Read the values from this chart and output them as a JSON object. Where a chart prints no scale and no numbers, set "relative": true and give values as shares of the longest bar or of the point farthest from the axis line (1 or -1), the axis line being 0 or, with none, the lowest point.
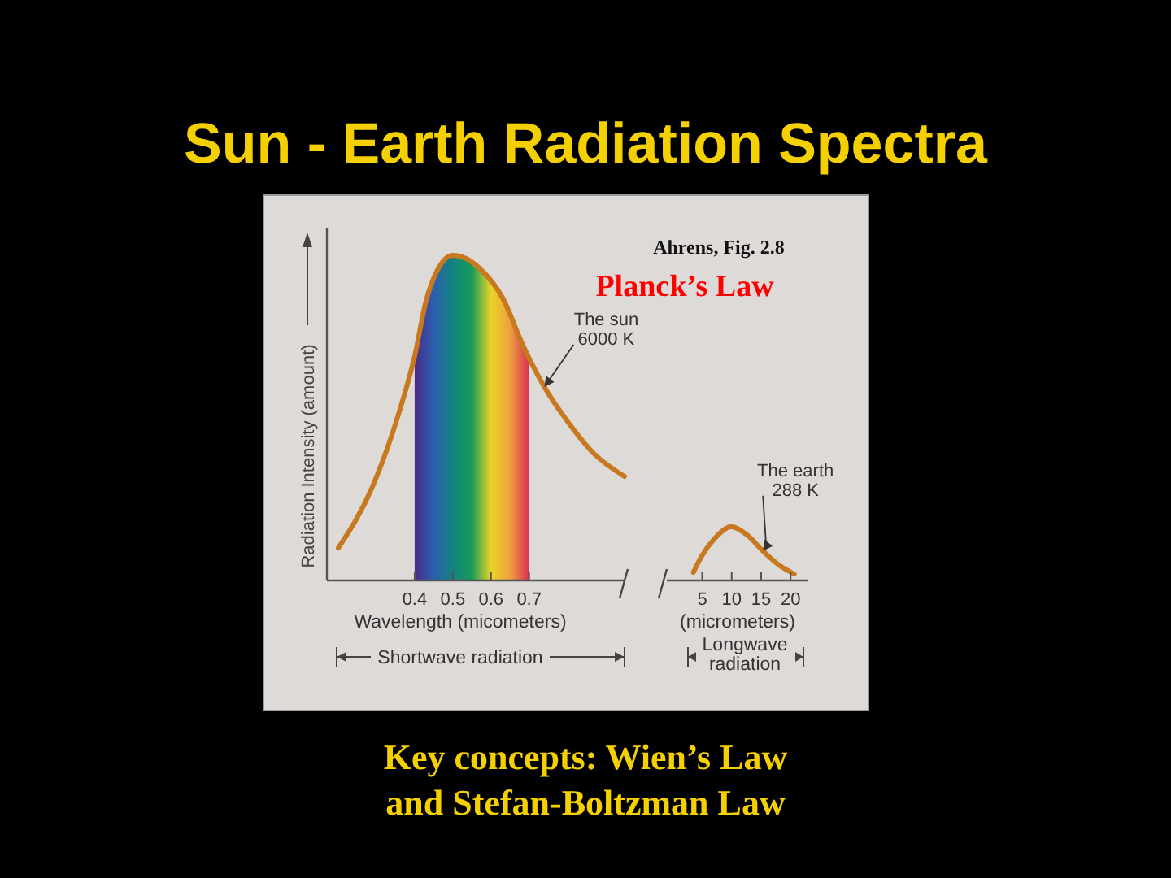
{
  "chart_data": [
    {
      "type": "line",
      "title": "Sun - Earth Radiation Spectra",
      "xlabel": "Wavelength (micometers)",
      "ylabel": "Radiation Intensity (amount)",
      "relative": true,
      "x": [
        0.2,
        0.29,
        0.36,
        0.4,
        0.43,
        0.46,
        0.5,
        0.535,
        0.57,
        0.63,
        0.685,
        0.74,
        0.8,
        0.87,
        0.95
      ],
      "series": [
        {
          "color": "#c8781e",
          "values": [
            0.1,
            0.29,
            0.52,
            0.69,
            0.86,
            0.955,
            1.0,
            0.99,
            0.96,
            0.87,
            0.72,
            0.595,
            0.49,
            0.39,
            0.32
          ]
        }
      ],
      "xlim": [
        0.17,
        0.95
      ],
      "xticks": [
        0.4,
        0.5,
        0.6,
        0.7
      ],
      "marker": "none",
      "bands": [
        {
          "axis": "x",
          "from": 0.4,
          "to": 0.7
        }
      ],
      "annotations": [
        "Ahrens, Fig. 2.8",
        "Planck’s Law",
        "Shortwave radiation",
        "Key concepts: Wien’s Law\nand Stefan-Boltzman Law",
        {
          "text": "The sun\n6000 K",
          "x": 0.74,
          "y": 0.595
        }
      ]
    },
    {
      "type": "line",
      "xlabel": "(micrometers)",
      "relative": true,
      "x": [
        3.5,
        4.9,
        7.1,
        9.9,
        12.6,
        15.3,
        18,
        20.6
      ],
      "series": [
        {
          "color": "#c8781e",
          "values": [
            0.15,
            0.45,
            0.78,
            1.0,
            0.85,
            0.55,
            0.29,
            0.12
          ]
        }
      ],
      "xlim": [
        -1,
        23
      ],
      "xticks": [
        5,
        10,
        15,
        20
      ],
      "marker": "none",
      "annotations": [
        "Longwave\nradiation",
        {
          "text": "The earth\n288 K",
          "x": 15.3,
          "y": 0.55
        }
      ]
    }
  ]
}
